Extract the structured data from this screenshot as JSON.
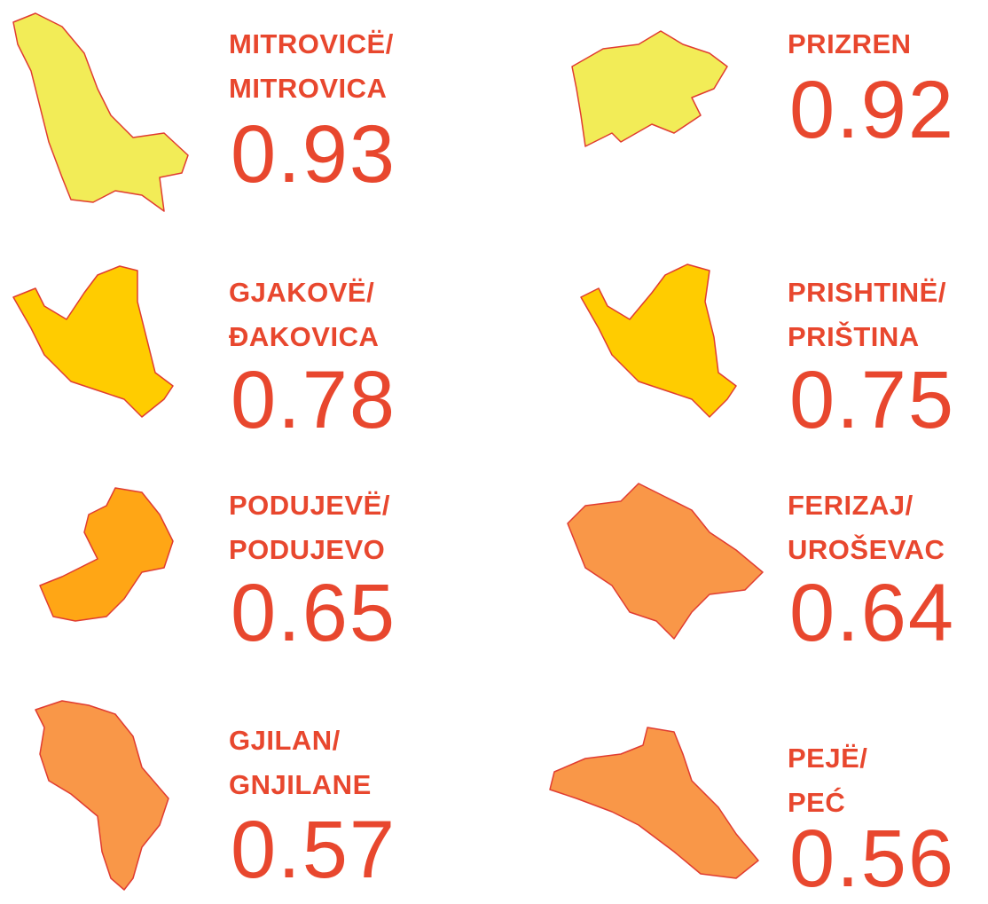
{
  "regions": [
    {
      "name": [
        "MITROVICË/",
        "MITROVICA"
      ],
      "value": 0.93,
      "color": "#f2ec57"
    },
    {
      "name": [
        "PRIZREN"
      ],
      "value": 0.92,
      "color": "#f2ec57"
    },
    {
      "name": [
        "GJAKOVË/",
        "ĐAKOVICA"
      ],
      "value": 0.78,
      "color": "#ffcc00"
    },
    {
      "name": [
        "PRISHTINË/",
        "PRIŠTINA"
      ],
      "value": 0.75,
      "color": "#ffcc00"
    },
    {
      "name": [
        "PODUJEVË/",
        "PODUJEVO"
      ],
      "value": 0.65,
      "color": "#ffa615"
    },
    {
      "name": [
        "FERIZAJ/",
        "UROŠEVAC"
      ],
      "value": 0.64,
      "color": "#f99748"
    },
    {
      "name": [
        "GJILAN/",
        "GNJILANE"
      ],
      "value": 0.57,
      "color": "#f99748"
    },
    {
      "name": [
        "PEJË/",
        "PEĆ"
      ],
      "value": 0.56,
      "color": "#f99748"
    }
  ]
}
